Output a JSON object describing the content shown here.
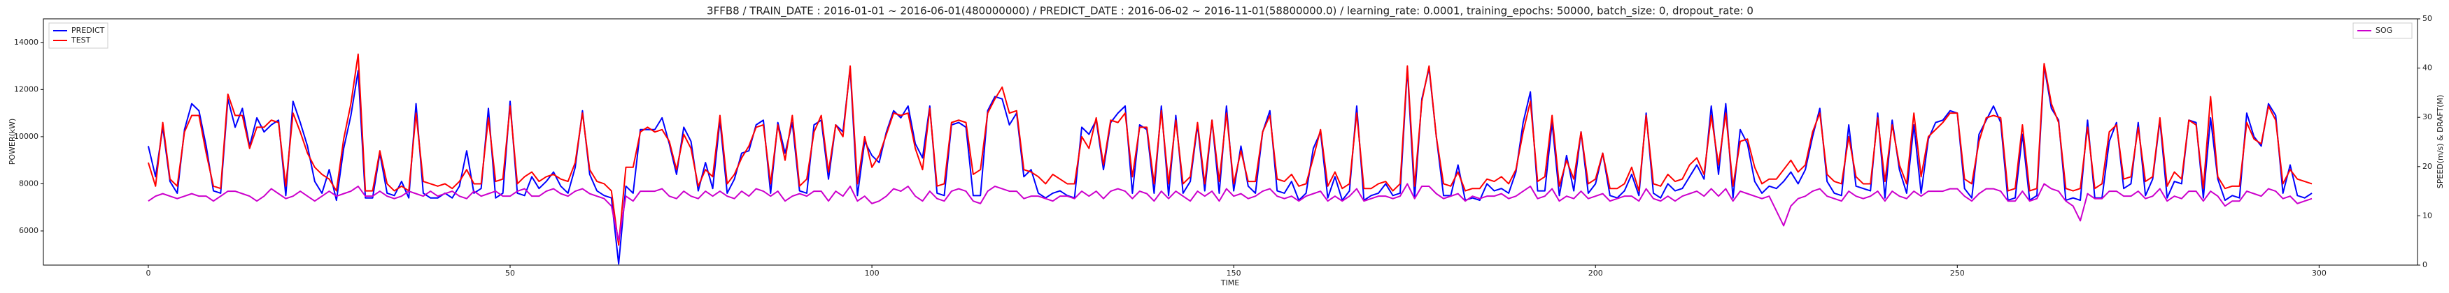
{
  "chart_data": {
    "type": "line",
    "title": "3FFB8 / TRAIN_DATE : 2016-01-01 ~ 2016-06-01(480000000) / PREDICT_DATE : 2016-06-02 ~ 2016-11-01(58800000.0) / learning_rate: 0.0001, training_epochs: 50000, batch_size: 0, dropout_rate: 0",
    "xlabel": "TIME",
    "ylabel": "POWER(kW)",
    "y2label": "SPEED(m/s) & DRAFT(M)",
    "xlim": [
      -14.5,
      313.6
    ],
    "xticks": [
      0,
      50,
      100,
      150,
      200,
      250,
      300
    ],
    "ylim": [
      4550,
      15000
    ],
    "yticks": [
      6000,
      8000,
      10000,
      12000,
      14000
    ],
    "y2lim": [
      0,
      50
    ],
    "y2ticks": [
      0,
      10,
      20,
      30,
      40,
      50
    ],
    "legend": "upper left",
    "legend2": "upper right",
    "x": [
      0,
      1,
      2,
      3,
      4,
      5,
      6,
      7,
      8,
      9,
      10,
      11,
      12,
      13,
      14,
      15,
      16,
      17,
      18,
      19,
      20,
      21,
      22,
      23,
      24,
      25,
      26,
      27,
      28,
      29,
      30,
      31,
      32,
      33,
      34,
      35,
      36,
      37,
      38,
      39,
      40,
      41,
      42,
      43,
      44,
      45,
      46,
      47,
      48,
      49,
      50,
      51,
      52,
      53,
      54,
      55,
      56,
      57,
      58,
      59,
      60,
      61,
      62,
      63,
      64,
      65,
      66,
      67,
      68,
      69,
      70,
      71,
      72,
      73,
      74,
      75,
      76,
      77,
      78,
      79,
      80,
      81,
      82,
      83,
      84,
      85,
      86,
      87,
      88,
      89,
      90,
      91,
      92,
      93,
      94,
      95,
      96,
      97,
      98,
      99,
      100,
      101,
      102,
      103,
      104,
      105,
      106,
      107,
      108,
      109,
      110,
      111,
      112,
      113,
      114,
      115,
      116,
      117,
      118,
      119,
      120,
      121,
      122,
      123,
      124,
      125,
      126,
      127,
      128,
      129,
      130,
      131,
      132,
      133,
      134,
      135,
      136,
      137,
      138,
      139,
      140,
      141,
      142,
      143,
      144,
      145,
      146,
      147,
      148,
      149,
      150,
      151,
      152,
      153,
      154,
      155,
      156,
      157,
      158,
      159,
      160,
      161,
      162,
      163,
      164,
      165,
      166,
      167,
      168,
      169,
      170,
      171,
      172,
      173,
      174,
      175,
      176,
      177,
      178,
      179,
      180,
      181,
      182,
      183,
      184,
      185,
      186,
      187,
      188,
      189,
      190,
      191,
      192,
      193,
      194,
      195,
      196,
      197,
      198,
      199,
      200,
      201,
      202,
      203,
      204,
      205,
      206,
      207,
      208,
      209,
      210,
      211,
      212,
      213,
      214,
      215,
      216,
      217,
      218,
      219,
      220,
      221,
      222,
      223,
      224,
      225,
      226,
      227,
      228,
      229,
      230,
      231,
      232,
      233,
      234,
      235,
      236,
      237,
      238,
      239,
      240,
      241,
      242,
      243,
      244,
      245,
      246,
      247,
      248,
      249,
      250,
      251,
      252,
      253,
      254,
      255,
      256,
      257,
      258,
      259,
      260,
      261,
      262,
      263,
      264,
      265,
      266,
      267,
      268,
      269,
      270,
      271,
      272,
      273,
      274,
      275,
      276,
      277,
      278,
      279,
      280,
      281,
      282,
      283,
      284,
      285,
      286,
      287,
      288,
      289,
      290,
      291,
      292,
      293,
      294,
      295,
      296,
      297,
      298,
      299
    ],
    "series": [
      {
        "name": "PREDICT",
        "color": "#0000ff",
        "values": [
          9600,
          8300,
          10400,
          8100,
          7600,
          10300,
          11400,
          11100,
          9600,
          7700,
          7600,
          11600,
          10400,
          11200,
          9600,
          10800,
          10200,
          10500,
          10700,
          7500,
          11500,
          10600,
          9600,
          8100,
          7600,
          8600,
          7300,
          9500,
          10900,
          12800,
          7400,
          7400,
          9300,
          7600,
          7500,
          8100,
          7400,
          11400,
          7600,
          7400,
          7400,
          7600,
          7400,
          7900,
          9400,
          7600,
          7800,
          11200,
          7400,
          7600,
          11500,
          7600,
          7500,
          8300,
          7800,
          8100,
          8500,
          7900,
          7600,
          8700,
          11100,
          8400,
          7700,
          7500,
          7400,
          4600,
          7900,
          7600,
          10300,
          10300,
          10300,
          10800,
          9700,
          8400,
          10400,
          9800,
          7700,
          8900,
          7800,
          10700,
          7600,
          8200,
          9300,
          9400,
          10500,
          10700,
          7600,
          10600,
          9300,
          10600,
          7700,
          7600,
          10500,
          10700,
          8200,
          10500,
          10200,
          12900,
          7500,
          9800,
          9200,
          8900,
          10200,
          11100,
          10800,
          11300,
          9700,
          9100,
          11300,
          7600,
          7500,
          10500,
          10600,
          10400,
          7500,
          7500,
          11100,
          11700,
          11600,
          10500,
          11000,
          8300,
          8600,
          7600,
          7400,
          7600,
          7700,
          7500,
          7400,
          10400,
          10100,
          10700,
          8600,
          10600,
          11000,
          11300,
          7600,
          10500,
          10300,
          7600,
          11300,
          7500,
          10900,
          7600,
          8100,
          10500,
          7700,
          10700,
          7600,
          11300,
          7700,
          9600,
          7900,
          7600,
          10200,
          11100,
          7700,
          7600,
          8100,
          7300,
          7600,
          9500,
          10200,
          7400,
          8300,
          7300,
          7700,
          11300,
          7300,
          7500,
          7600,
          8000,
          7500,
          7600,
          12900,
          7400,
          11600,
          12900,
          10000,
          7500,
          7500,
          8800,
          7300,
          7400,
          7300,
          8000,
          7700,
          7800,
          7600,
          8500,
          10600,
          11900,
          7700,
          7700,
          10600,
          7500,
          9200,
          7700,
          10200,
          7600,
          8000,
          9300,
          7500,
          7400,
          7700,
          8400,
          7500,
          11000,
          7600,
          7400,
          8000,
          7700,
          7800,
          8300,
          8800,
          8200,
          11300,
          8400,
          11400,
          7400,
          10300,
          9700,
          8100,
          7600,
          7900,
          7800,
          8100,
          8500,
          8000,
          8600,
          10000,
          11200,
          8100,
          7600,
          7500,
          10500,
          7900,
          7800,
          7700,
          11000,
          7400,
          10700,
          8600,
          7600,
          10500,
          7600,
          9900,
          10600,
          10700,
          11100,
          11000,
          7800,
          7400,
          10100,
          10700,
          11300,
          10600,
          7300,
          7400,
          10100,
          7300,
          7500,
          13000,
          11200,
          10700,
          7300,
          7400,
          7300,
          10700,
          7400,
          7400,
          9800,
          10600,
          7800,
          8000,
          10600,
          7500,
          8200,
          10700,
          7400,
          8100,
          8000,
          10700,
          10600,
          7400,
          10800,
          8200,
          7300,
          7500,
          7400,
          11000,
          10000,
          9600,
          11400,
          10900,
          7600,
          8800,
          7500,
          7400,
          7600
        ]
      },
      {
        "name": "TEST",
        "color": "#ff0000",
        "values": [
          8900,
          7900,
          10600,
          8200,
          7900,
          10200,
          10900,
          10900,
          9300,
          7900,
          7800,
          11800,
          10900,
          10900,
          9500,
          10400,
          10400,
          10700,
          10600,
          7900,
          11000,
          10200,
          9300,
          8700,
          8400,
          8200,
          7700,
          9900,
          11400,
          13500,
          7700,
          7700,
          9400,
          8000,
          7700,
          7900,
          7700,
          11000,
          8100,
          8000,
          7900,
          8000,
          7800,
          8100,
          8600,
          8000,
          8000,
          10800,
          8100,
          8200,
          11300,
          8000,
          8300,
          8500,
          8100,
          8300,
          8400,
          8200,
          8100,
          8900,
          11000,
          8600,
          8100,
          8000,
          7700,
          5400,
          8700,
          8700,
          10200,
          10400,
          10200,
          10300,
          9800,
          8600,
          10100,
          9500,
          7900,
          8600,
          8300,
          10900,
          8000,
          8400,
          9100,
          9600,
          10400,
          10500,
          8000,
          10500,
          9000,
          10900,
          7900,
          8200,
          10200,
          10900,
          8500,
          10500,
          10000,
          13000,
          8000,
          10000,
          8700,
          9200,
          10100,
          11000,
          10900,
          11000,
          9500,
          8600,
          11200,
          7900,
          8000,
          10600,
          10700,
          10600,
          8400,
          8600,
          11000,
          11600,
          12100,
          11000,
          11100,
          8600,
          8500,
          8300,
          8000,
          8400,
          8200,
          8000,
          8000,
          10000,
          9500,
          10800,
          8800,
          10700,
          10600,
          11000,
          8300,
          10400,
          10400,
          8000,
          11100,
          8000,
          10700,
          8000,
          8300,
          10600,
          8000,
          10700,
          8100,
          11000,
          8000,
          9400,
          8100,
          8100,
          10200,
          10900,
          8200,
          8100,
          8400,
          7900,
          8000,
          9100,
          10300,
          7900,
          8500,
          7800,
          8000,
          11000,
          7800,
          7800,
          8000,
          8100,
          7700,
          8000,
          13000,
          7900,
          11500,
          13000,
          10000,
          8000,
          7900,
          8500,
          7700,
          7800,
          7800,
          8200,
          8100,
          8300,
          8000,
          8600,
          10200,
          11500,
          8100,
          8300,
          10900,
          7900,
          9000,
          8200,
          10200,
          8000,
          8200,
          9300,
          7800,
          7800,
          8000,
          8700,
          7700,
          10900,
          8000,
          7900,
          8400,
          8100,
          8200,
          8800,
          9100,
          8400,
          10900,
          8800,
          11000,
          7900,
          9800,
          9900,
          8700,
          8000,
          8200,
          8200,
          8600,
          9000,
          8500,
          8800,
          10200,
          11000,
          8400,
          8100,
          8000,
          10000,
          8300,
          8000,
          8000,
          10800,
          8100,
          10500,
          8800,
          8000,
          11000,
          8300,
          10000,
          10300,
          10600,
          11000,
          11000,
          8200,
          8000,
          9800,
          10800,
          10900,
          10800,
          7700,
          7800,
          10500,
          7700,
          7800,
          13100,
          11400,
          10600,
          7800,
          7700,
          7800,
          10400,
          7800,
          8000,
          10200,
          10500,
          8200,
          8300,
          10400,
          8100,
          8300,
          10800,
          7900,
          8500,
          8200,
          10700,
          10500,
          7800,
          11700,
          8300,
          7800,
          7900,
          7900,
          10600,
          9900,
          9700,
          11300,
          10700,
          8000,
          8600,
          8200,
          8100,
          8000
        ]
      },
      {
        "name": "SOG",
        "color": "#cc00cc",
        "axis": "y2",
        "values": [
          13,
          14,
          14.5,
          14,
          13.5,
          14,
          14.5,
          14,
          14,
          13,
          14,
          15,
          15,
          14.5,
          14,
          13,
          14,
          15.5,
          14.5,
          13.5,
          14,
          15,
          14,
          13,
          14,
          15,
          14,
          14.5,
          15,
          16,
          14,
          14,
          15,
          14,
          13.5,
          14,
          15,
          14.5,
          14,
          15,
          14,
          14.5,
          15,
          14,
          13.5,
          15,
          14,
          14.5,
          15,
          14,
          14,
          15,
          15.5,
          14,
          14,
          15,
          15.5,
          14.5,
          14,
          15,
          15.5,
          14.5,
          14,
          13.5,
          12,
          5,
          14,
          13,
          15,
          15,
          15,
          15.5,
          14,
          13.5,
          15,
          14,
          13.5,
          15,
          14,
          15,
          14,
          13.5,
          15,
          14,
          15.5,
          15,
          14,
          15,
          13,
          14,
          14.5,
          14,
          15,
          15,
          13,
          15,
          14,
          16,
          13,
          14,
          12.5,
          13,
          14,
          15.5,
          15,
          16,
          14,
          13,
          15,
          13.5,
          13,
          15,
          15.5,
          15,
          13,
          12.5,
          15,
          16,
          15.5,
          15,
          15,
          13.5,
          14,
          14,
          13.5,
          13,
          14,
          14,
          13.5,
          15,
          14,
          15,
          13.5,
          15,
          15.5,
          15,
          13.5,
          15,
          14.5,
          13,
          15,
          13.5,
          15,
          14,
          13,
          15,
          14,
          15,
          13,
          15.5,
          14,
          14.5,
          13.5,
          14,
          15,
          15.5,
          14,
          13.5,
          14,
          13,
          14,
          14.5,
          15,
          13,
          14,
          13,
          14,
          15.5,
          13,
          13.5,
          14,
          14,
          13.5,
          14,
          16.5,
          13.5,
          16,
          16,
          14.5,
          13.5,
          14,
          14.5,
          13,
          14,
          13.5,
          14,
          14,
          14.5,
          13.5,
          14,
          15,
          16,
          13.5,
          14,
          15.5,
          13,
          14,
          13.5,
          15,
          13.5,
          14,
          14.5,
          13,
          13.5,
          14,
          14,
          13,
          15.5,
          13.5,
          13,
          14,
          13,
          14,
          14.5,
          15,
          14,
          15.5,
          14,
          15.5,
          13,
          15,
          14.5,
          14,
          13.5,
          14,
          11,
          8,
          12,
          13.5,
          14,
          15,
          15.5,
          14,
          13.5,
          13,
          15,
          14,
          13.5,
          14,
          15,
          13,
          15,
          14,
          13.5,
          15,
          14,
          15,
          15,
          15,
          15.5,
          15.5,
          14,
          13,
          14.5,
          15.5,
          15.5,
          15,
          13,
          13,
          15,
          13,
          13.5,
          16.5,
          15.5,
          15,
          13,
          12,
          9,
          14.5,
          13.5,
          13.5,
          15,
          15,
          14,
          14,
          15,
          13.5,
          14,
          15.5,
          13,
          14,
          13.5,
          15,
          15,
          13,
          15,
          14,
          12,
          13,
          13,
          15,
          14.5,
          14,
          15.5,
          15,
          13.5,
          14,
          12.5,
          13,
          13.5
        ]
      }
    ]
  }
}
